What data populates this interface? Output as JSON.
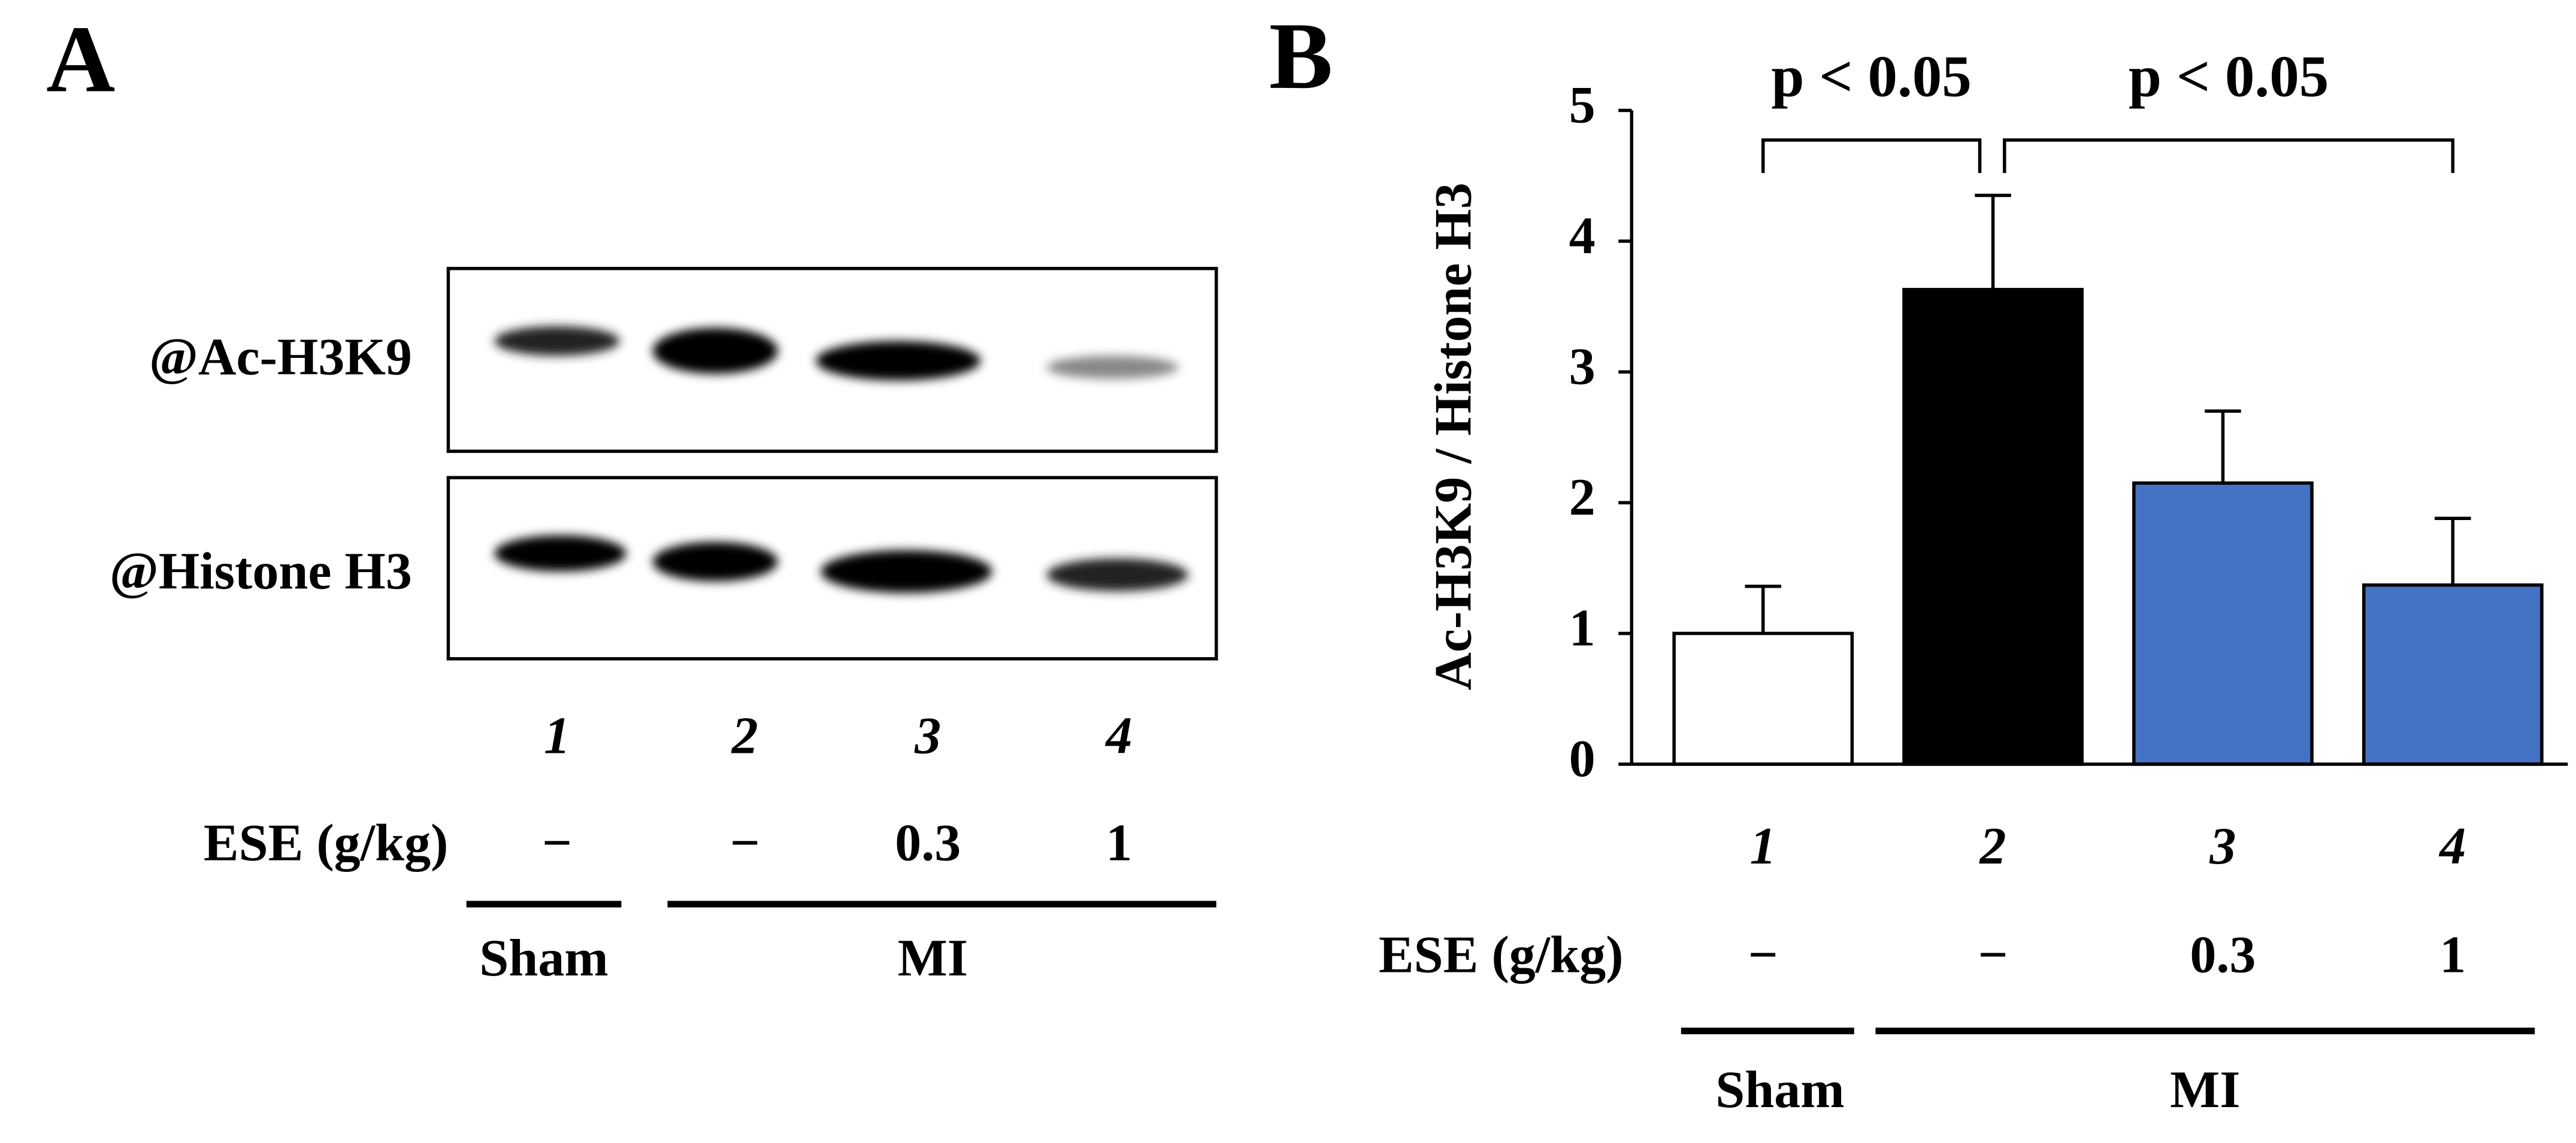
{
  "panel_a": {
    "label": "A",
    "rows": [
      "@Ac-H3K9",
      "@Histone H3"
    ],
    "lanes": [
      "1",
      "2",
      "3",
      "4"
    ],
    "treatment_label": "ESE (g/kg)",
    "doses": [
      "−",
      "−",
      "0.3",
      "1"
    ],
    "groups": [
      "Sham",
      "MI"
    ]
  },
  "chart_data": {
    "type": "bar",
    "panel_label": "B",
    "y_label": "Ac-H3K9 / Histone H3",
    "categories": [
      "1",
      "2",
      "3",
      "4"
    ],
    "values": [
      1.0,
      3.63,
      2.15,
      1.37
    ],
    "errors": [
      0.36,
      0.72,
      0.55,
      0.51
    ],
    "colors": [
      "#ffffff",
      "#000000",
      "#4472c4",
      "#4472c4"
    ],
    "ylim": [
      0,
      5
    ],
    "yticks": [
      0,
      1,
      2,
      3,
      4,
      5
    ],
    "treatment_label": "ESE (g/kg)",
    "doses": [
      "−",
      "−",
      "0.3",
      "1"
    ],
    "groups": [
      "Sham",
      "MI"
    ],
    "annotations": [
      {
        "text": "p < 0.05",
        "between": [
          0,
          1
        ]
      },
      {
        "text": "p < 0.05",
        "between": [
          1,
          3
        ]
      }
    ]
  }
}
